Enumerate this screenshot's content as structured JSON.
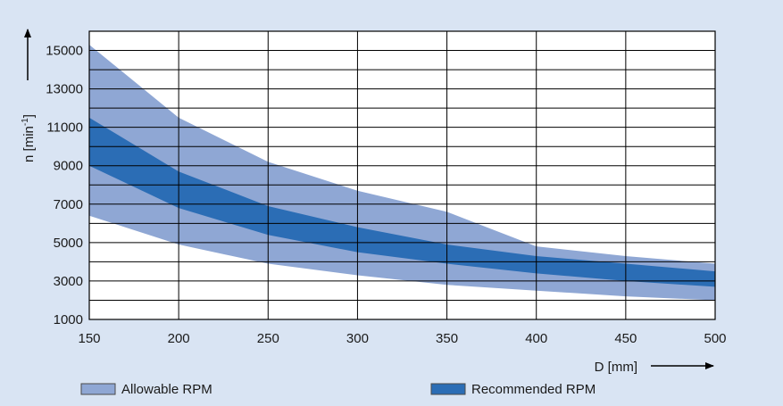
{
  "chart_data": {
    "type": "area",
    "xlabel": "D [mm]",
    "ylabel_base": "n [min",
    "ylabel_sup": "-1",
    "ylabel_end": "]",
    "xlim": [
      150,
      500
    ],
    "ylim": [
      1000,
      16000
    ],
    "x_ticks": [
      150,
      200,
      250,
      300,
      350,
      400,
      450,
      500
    ],
    "y_ticks": [
      1000,
      3000,
      5000,
      7000,
      9000,
      11000,
      13000,
      15000
    ],
    "y_minor_step": 1000,
    "grid": true,
    "legend_position": "bottom",
    "colors": {
      "background": "#d9e4f3",
      "allowable": "#8fa7d4",
      "recommended": "#2b6db5",
      "grid": "#000000"
    },
    "series": [
      {
        "name": "Allowable RPM",
        "x": [
          150,
          200,
          250,
          300,
          350,
          400,
          450,
          500
        ],
        "upper": [
          15300,
          11500,
          9200,
          7700,
          6600,
          4800,
          4300,
          3900
        ],
        "lower": [
          6400,
          4900,
          3900,
          3300,
          2800,
          2500,
          2200,
          2000
        ]
      },
      {
        "name": "Recommended RPM",
        "x": [
          150,
          200,
          250,
          300,
          350,
          400,
          450,
          500
        ],
        "upper": [
          11500,
          8700,
          6900,
          5800,
          4900,
          4300,
          3900,
          3500
        ],
        "lower": [
          9000,
          6800,
          5400,
          4500,
          3900,
          3400,
          3000,
          2700
        ]
      }
    ]
  }
}
